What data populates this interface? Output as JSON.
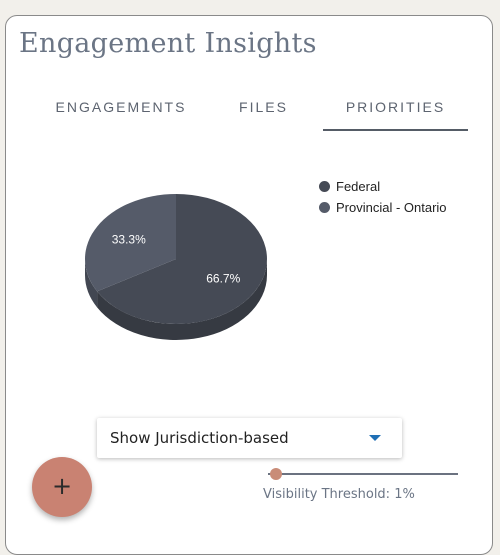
{
  "header": {
    "title": "Engagement Insights"
  },
  "tabs": [
    {
      "label": "ENGAGEMENTS",
      "active": false
    },
    {
      "label": "FILES",
      "active": false
    },
    {
      "label": "PRIORITIES",
      "active": true
    }
  ],
  "chart_data": {
    "type": "pie",
    "title": "",
    "categories": [
      "Federal",
      "Provincial - Ontario"
    ],
    "values": [
      66.7,
      33.3
    ],
    "data_labels": [
      "66.7%",
      "33.3%"
    ],
    "colors": [
      "#454a55",
      "#555b69"
    ],
    "legend_position": "top-right",
    "style": "3d"
  },
  "legend": {
    "items": [
      {
        "label": "Federal",
        "color": "#454a55"
      },
      {
        "label": "Provincial - Ontario",
        "color": "#555b69"
      }
    ]
  },
  "filter": {
    "selected": "Show Jurisdiction-based",
    "arrow_color": "#1f6fb5"
  },
  "slider": {
    "label": "Visibility Threshold: 1%",
    "value_percent": 1,
    "thumb_color": "#c98c78"
  },
  "fab": {
    "label": "+",
    "color": "#c98272"
  }
}
